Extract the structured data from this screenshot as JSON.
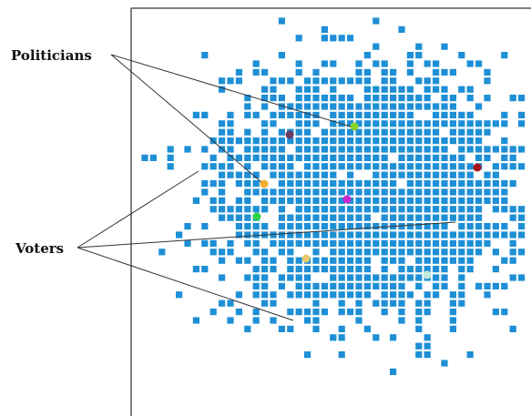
{
  "labels": {
    "politicians": "Politicians",
    "voters": "Voters"
  },
  "colors": {
    "voter": "#1e8fd6",
    "frame": "#555555",
    "pointer_line": "#333333",
    "politicians": [
      "#8bd42a",
      "#6b3a66",
      "#a8121c",
      "#f4b030",
      "#cc27d1",
      "#2fd04a",
      "#e8c86a",
      "#c0e8d8"
    ]
  },
  "chart_data": {
    "type": "scatter",
    "description_series": [
      {
        "name": "Voters",
        "count": "many",
        "marker": "square"
      },
      {
        "name": "Politicians",
        "count": 8,
        "marker": "circle"
      }
    ]
  }
}
